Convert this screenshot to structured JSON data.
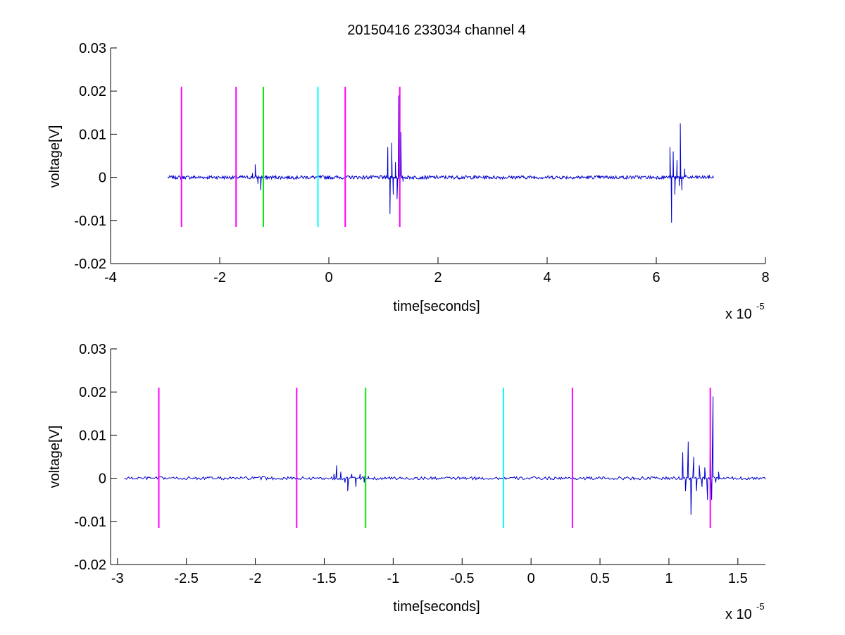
{
  "figure_title": "20150416 233034 channel 4",
  "colors": {
    "trace": "#0000cc",
    "magenta": "#ff00ff",
    "green": "#00ee00",
    "cyan": "#00ffff",
    "axis": "#000000"
  },
  "chart_data": [
    {
      "type": "line",
      "title": "20150416 233034 channel 4",
      "xlabel": "time[seconds]",
      "ylabel": "voltage[V]",
      "x_exponent_label": "x 10",
      "x_exponent": "-5",
      "xlim": [
        -4,
        8
      ],
      "ylim": [
        -0.02,
        0.03
      ],
      "xticks": [
        -4,
        -2,
        0,
        2,
        4,
        6,
        8
      ],
      "xtick_labels": [
        "-4",
        "-2",
        "0",
        "2",
        "4",
        "6",
        "8"
      ],
      "yticks": [
        -0.02,
        -0.01,
        0,
        0.01,
        0.02,
        0.03
      ],
      "ytick_labels": [
        "-0.02",
        "-0.01",
        "0",
        "0.01",
        "0.02",
        "0.03"
      ],
      "grid": false,
      "trace": {
        "x_range": [
          -2.95,
          7.05
        ],
        "baseline": 0,
        "noise_amplitude": 0.0004,
        "bursts": [
          {
            "x": [
              -1.4,
              -1.35,
              -1.3,
              -1.25,
              -1.2,
              -1.15
            ],
            "y": [
              0.001,
              0.003,
              -0.0015,
              -0.003,
              0.0015,
              -0.0005
            ]
          },
          {
            "x": [
              1.08,
              1.12,
              1.15,
              1.18,
              1.22,
              1.25,
              1.28,
              1.3,
              1.32,
              1.36
            ],
            "y": [
              0.007,
              -0.0085,
              0.008,
              -0.004,
              0.0035,
              -0.005,
              0.019,
              -0.006,
              0.0105,
              -0.001
            ]
          },
          {
            "x": [
              6.25,
              6.28,
              6.31,
              6.34,
              6.38,
              6.42,
              6.44,
              6.47,
              6.52
            ],
            "y": [
              0.007,
              -0.0105,
              0.006,
              -0.004,
              0.004,
              -0.002,
              0.0125,
              -0.003,
              0.002
            ]
          }
        ]
      },
      "markers": [
        {
          "x": -2.7,
          "color": "magenta",
          "y_range": [
            -0.0115,
            0.021
          ]
        },
        {
          "x": -1.7,
          "color": "magenta",
          "y_range": [
            -0.0115,
            0.021
          ]
        },
        {
          "x": -1.2,
          "color": "green",
          "y_range": [
            -0.0115,
            0.021
          ]
        },
        {
          "x": -0.2,
          "color": "cyan",
          "y_range": [
            -0.0115,
            0.021
          ]
        },
        {
          "x": 0.3,
          "color": "magenta",
          "y_range": [
            -0.0115,
            0.021
          ]
        },
        {
          "x": 1.3,
          "color": "magenta",
          "y_range": [
            -0.0115,
            0.021
          ]
        }
      ]
    },
    {
      "type": "line",
      "title": "",
      "xlabel": "time[seconds]",
      "ylabel": "voltage[V]",
      "x_exponent_label": "x 10",
      "x_exponent": "-5",
      "xlim": [
        -3.05,
        1.7
      ],
      "ylim": [
        -0.02,
        0.03
      ],
      "xticks": [
        -3,
        -2.5,
        -2,
        -1.5,
        -1,
        -0.5,
        0,
        0.5,
        1,
        1.5
      ],
      "xtick_labels": [
        "-3",
        "-2.5",
        "-2",
        "-1.5",
        "-1",
        "-0.5",
        "0",
        "0.5",
        "1",
        "1.5"
      ],
      "yticks": [
        -0.02,
        -0.01,
        0,
        0.01,
        0.02,
        0.03
      ],
      "ytick_labels": [
        "-0.02",
        "-0.01",
        "0",
        "0.01",
        "0.02",
        "0.03"
      ],
      "grid": false,
      "trace": {
        "x_range": [
          -2.95,
          1.7
        ],
        "baseline": 0,
        "noise_amplitude": 0.00035,
        "bursts": [
          {
            "x": [
              -1.43,
              -1.41,
              -1.38,
              -1.35,
              -1.33,
              -1.3,
              -1.27,
              -1.24,
              -1.21,
              -1.18
            ],
            "y": [
              0.001,
              0.003,
              0.0015,
              -0.001,
              -0.003,
              0.001,
              -0.002,
              0.001,
              -0.001,
              0.0005
            ]
          },
          {
            "x": [
              1.1,
              1.12,
              1.14,
              1.16,
              1.18,
              1.2,
              1.22,
              1.24,
              1.26,
              1.28,
              1.3,
              1.31,
              1.32,
              1.34,
              1.36
            ],
            "y": [
              0.006,
              -0.003,
              0.0085,
              -0.0085,
              0.005,
              -0.003,
              0.003,
              -0.002,
              0.0025,
              -0.005,
              0.011,
              -0.005,
              0.019,
              -0.001,
              0.0015
            ]
          }
        ]
      },
      "markers": [
        {
          "x": -2.7,
          "color": "magenta",
          "y_range": [
            -0.0115,
            0.021
          ]
        },
        {
          "x": -1.7,
          "color": "magenta",
          "y_range": [
            -0.0115,
            0.021
          ]
        },
        {
          "x": -1.2,
          "color": "green",
          "y_range": [
            -0.0115,
            0.021
          ]
        },
        {
          "x": -0.2,
          "color": "cyan",
          "y_range": [
            -0.0115,
            0.021
          ]
        },
        {
          "x": 0.3,
          "color": "magenta",
          "y_range": [
            -0.0115,
            0.021
          ]
        },
        {
          "x": 1.3,
          "color": "magenta",
          "y_range": [
            -0.0115,
            0.021
          ]
        }
      ]
    }
  ]
}
